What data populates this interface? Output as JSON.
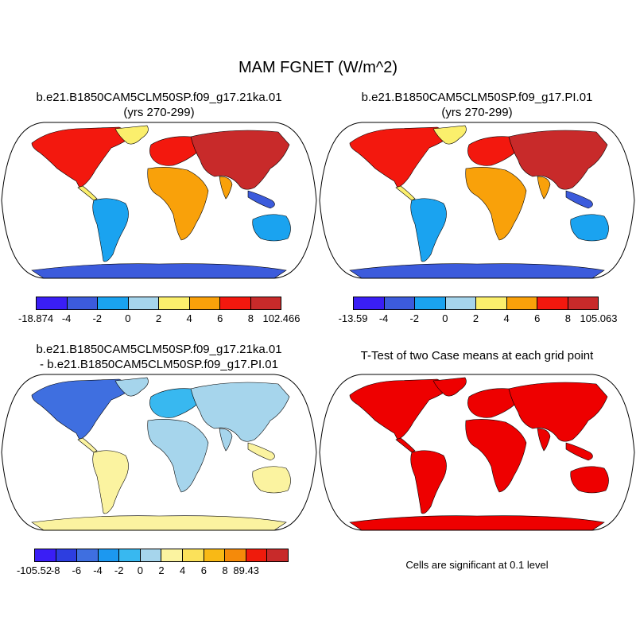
{
  "figure": {
    "title": "MAM FGNET (W/m^2)"
  },
  "panels": {
    "top_left": {
      "title_line1": "b.e21.B1850CAM5CLM50SP.f09_g17.21ka.01",
      "title_line2": "(yrs 270-299)",
      "colorbar": {
        "colors": [
          "#3a1ef5",
          "#3c5bdc",
          "#1aa3f0",
          "#a6d5ec",
          "#fbef6c",
          "#f9a10a",
          "#f3180e",
          "#c82a2a"
        ],
        "labels": [
          "-18.874",
          "-4",
          "-2",
          "0",
          "2",
          "4",
          "6",
          "8",
          "102.466"
        ]
      }
    },
    "top_right": {
      "title_line1": "b.e21.B1850CAM5CLM50SP.f09_g17.PI.01",
      "title_line2": "(yrs 270-299)",
      "colorbar": {
        "colors": [
          "#3a1ef5",
          "#3c5bdc",
          "#1aa3f0",
          "#a6d5ec",
          "#fbef6c",
          "#f9a10a",
          "#f3180e",
          "#c82a2a"
        ],
        "labels": [
          "-13.59",
          "-4",
          "-2",
          "0",
          "2",
          "4",
          "6",
          "8",
          "105.063"
        ]
      }
    },
    "bottom_left": {
      "title_line1": "b.e21.B1850CAM5CLM50SP.f09_g17.21ka.01",
      "title_line2": "- b.e21.B1850CAM5CLM50SP.f09_g17.PI.01",
      "colorbar": {
        "colors": [
          "#3a1ef5",
          "#2d3ee0",
          "#3f6fe0",
          "#1c98f0",
          "#38b8f0",
          "#a6d5ec",
          "#fbf3a0",
          "#fbe15a",
          "#f9b915",
          "#f58a0a",
          "#ef1b0c",
          "#c82a2a"
        ],
        "labels": [
          "-105.52",
          "-8",
          "-6",
          "-4",
          "-2",
          "0",
          "2",
          "4",
          "6",
          "8",
          "89.43"
        ]
      }
    },
    "bottom_right": {
      "title": "T-Test of two Case means at each grid point",
      "note": "Cells are significant at 0.1 level"
    }
  }
}
